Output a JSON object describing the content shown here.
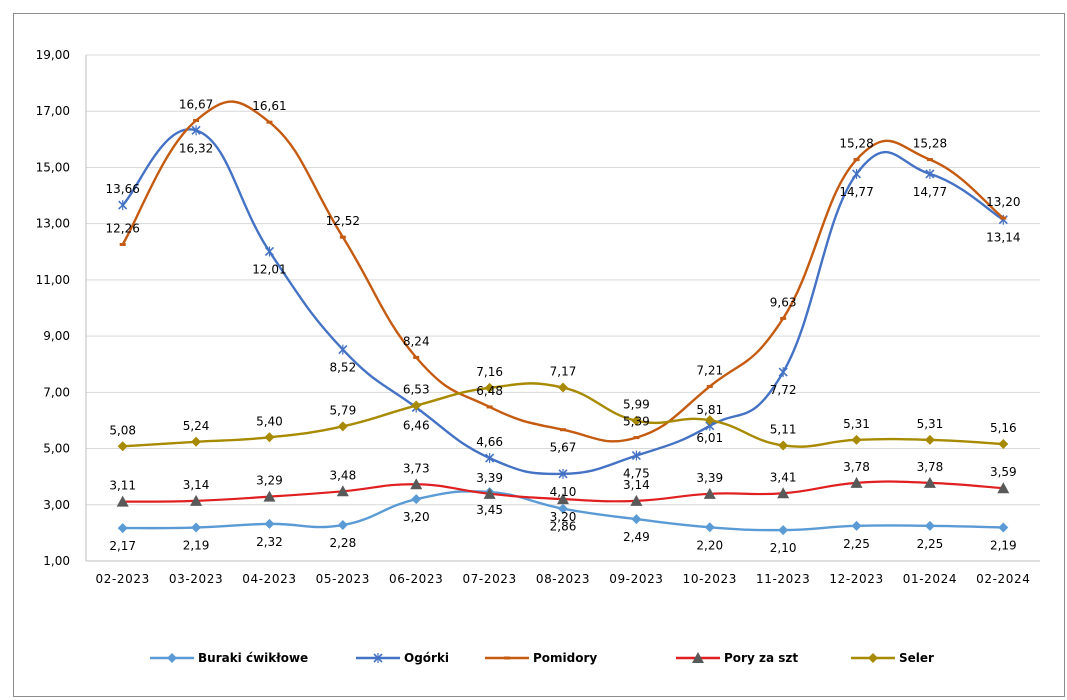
{
  "chart_data": {
    "type": "line",
    "categories": [
      "02-2023",
      "03-2023",
      "04-2023",
      "05-2023",
      "06-2023",
      "07-2023",
      "08-2023",
      "09-2023",
      "10-2023",
      "11-2023",
      "12-2023",
      "01-2024",
      "02-2024"
    ],
    "ylim": [
      1,
      19
    ],
    "yticks": [
      "1,00",
      "3,00",
      "5,00",
      "7,00",
      "9,00",
      "11,00",
      "13,00",
      "15,00",
      "17,00",
      "19,00"
    ],
    "grid": true,
    "legend_position": "bottom",
    "series": [
      {
        "name": "Buraki ćwikłowe",
        "color": "#5b9bd5",
        "marker": "diamond",
        "values": [
          2.17,
          2.19,
          2.32,
          2.28,
          3.2,
          3.45,
          2.86,
          2.49,
          2.2,
          2.1,
          2.25,
          2.25,
          2.19
        ],
        "labels": [
          "2,17",
          "2,19",
          "2,32",
          "2,28",
          "3,20",
          "3,45",
          "2,86",
          "2,49",
          "2,20",
          "2,10",
          "2,25",
          "2,25",
          "2,19"
        ]
      },
      {
        "name": "Ogórki",
        "color": "#4472c4",
        "marker": "x",
        "values": [
          13.66,
          16.32,
          12.01,
          8.52,
          6.46,
          4.66,
          4.1,
          4.75,
          5.81,
          7.72,
          14.77,
          14.77,
          13.14
        ],
        "labels": [
          "13,66",
          "16,32",
          "12,01",
          "8,52",
          "6,46",
          "4,66",
          "4,10",
          "4,75",
          "5,81",
          "7,72",
          "14,77",
          "14,77",
          "13,14"
        ]
      },
      {
        "name": "Pomidory",
        "color": "#c55a11",
        "marker": "dash",
        "values": [
          12.26,
          16.67,
          16.61,
          12.52,
          8.24,
          6.48,
          5.67,
          5.39,
          7.21,
          9.63,
          15.28,
          15.28,
          13.2
        ],
        "labels": [
          "12,26",
          "16,67",
          "16,61",
          "12,52",
          "8,24",
          "6,48",
          "5,67",
          "5,39",
          "7,21",
          "9,63",
          "15,28",
          "15,28",
          "13,20"
        ]
      },
      {
        "name": "Pory za szt",
        "color": "#e02020",
        "marker": "triangle",
        "values": [
          3.11,
          3.14,
          3.29,
          3.48,
          3.73,
          3.39,
          3.2,
          3.14,
          3.39,
          3.41,
          3.78,
          3.78,
          3.59
        ],
        "labels": [
          "3,11",
          "3,14",
          "3,29",
          "3,48",
          "3,73",
          "3,39",
          "3,20",
          "3,14",
          "3,39",
          "3,41",
          "3,78",
          "3,78",
          "3,59"
        ]
      },
      {
        "name": "Seler",
        "color": "#a88a00",
        "marker": "diamond",
        "values": [
          5.08,
          5.24,
          5.4,
          5.79,
          6.53,
          7.16,
          7.17,
          5.99,
          6.01,
          5.11,
          5.31,
          5.31,
          5.16
        ],
        "labels": [
          "5,08",
          "5,24",
          "5,40",
          "5,79",
          "6,53",
          "7,16",
          "7,17",
          "5,99",
          "6,01",
          "5,11",
          "5,31",
          "5,31",
          "5,16"
        ]
      }
    ]
  }
}
